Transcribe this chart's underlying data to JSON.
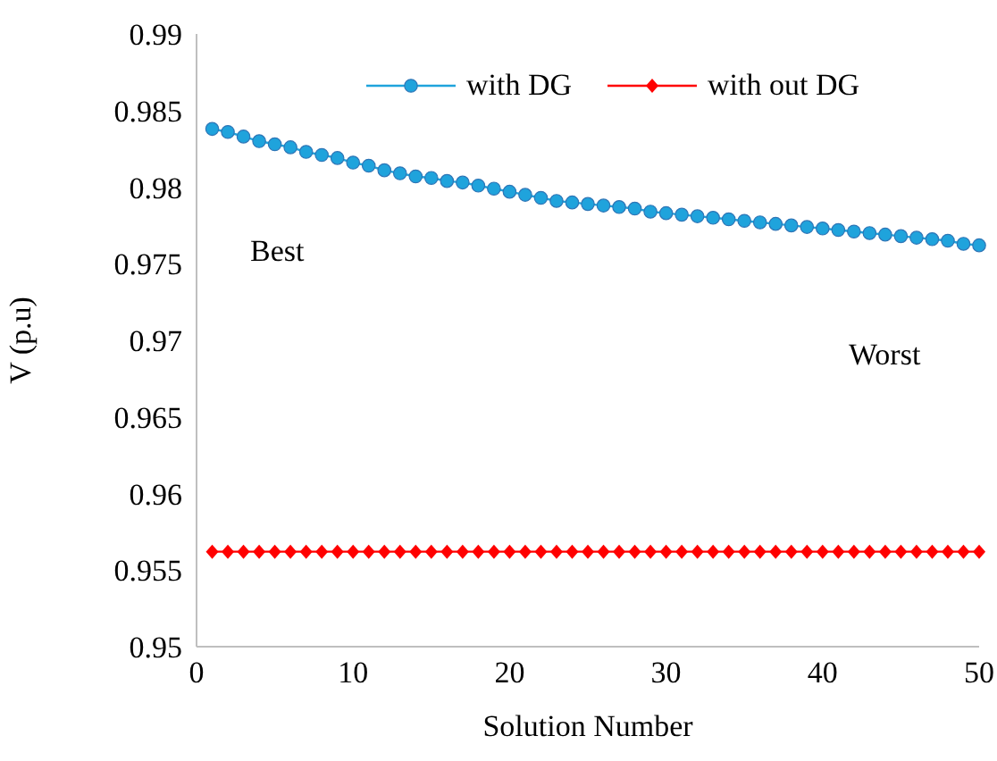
{
  "chart_data": {
    "type": "line",
    "xlabel": "Solution Number",
    "ylabel": "V (p.u)",
    "x": [
      1,
      2,
      3,
      4,
      5,
      6,
      7,
      8,
      9,
      10,
      11,
      12,
      13,
      14,
      15,
      16,
      17,
      18,
      19,
      20,
      21,
      22,
      23,
      24,
      25,
      26,
      27,
      28,
      29,
      30,
      31,
      32,
      33,
      34,
      35,
      36,
      37,
      38,
      39,
      40,
      41,
      42,
      43,
      44,
      45,
      46,
      47,
      48,
      49,
      50
    ],
    "series": [
      {
        "name": "with DG",
        "color": "#1fa3dc",
        "marker": "circle",
        "values": [
          0.9838,
          0.9836,
          0.9833,
          0.983,
          0.9828,
          0.9826,
          0.9823,
          0.9821,
          0.9819,
          0.9816,
          0.9814,
          0.9811,
          0.9809,
          0.9807,
          0.9806,
          0.9804,
          0.9803,
          0.9801,
          0.9799,
          0.9797,
          0.9795,
          0.9793,
          0.9791,
          0.979,
          0.9789,
          0.9788,
          0.9787,
          0.9786,
          0.9784,
          0.9783,
          0.9782,
          0.9781,
          0.978,
          0.9779,
          0.9778,
          0.9777,
          0.9776,
          0.9775,
          0.9774,
          0.9773,
          0.9772,
          0.9771,
          0.977,
          0.9769,
          0.9768,
          0.9767,
          0.9766,
          0.9765,
          0.9763,
          0.9762
        ]
      },
      {
        "name": "with out DG",
        "color": "#ff0000",
        "marker": "diamond",
        "values": [
          0.9562,
          0.9562,
          0.9562,
          0.9562,
          0.9562,
          0.9562,
          0.9562,
          0.9562,
          0.9562,
          0.9562,
          0.9562,
          0.9562,
          0.9562,
          0.9562,
          0.9562,
          0.9562,
          0.9562,
          0.9562,
          0.9562,
          0.9562,
          0.9562,
          0.9562,
          0.9562,
          0.9562,
          0.9562,
          0.9562,
          0.9562,
          0.9562,
          0.9562,
          0.9562,
          0.9562,
          0.9562,
          0.9562,
          0.9562,
          0.9562,
          0.9562,
          0.9562,
          0.9562,
          0.9562,
          0.9562,
          0.9562,
          0.9562,
          0.9562,
          0.9562,
          0.9562,
          0.9562,
          0.9562,
          0.9562,
          0.9562,
          0.9562
        ]
      }
    ],
    "xlim": [
      0,
      50
    ],
    "xticks": [
      0,
      10,
      20,
      30,
      40,
      50
    ],
    "ylim": [
      0.95,
      0.99
    ],
    "yticks": [
      0.95,
      0.955,
      0.96,
      0.965,
      0.97,
      0.975,
      0.98,
      0.985,
      0.99
    ],
    "legend": "top",
    "annotations": [
      "Best",
      "Worst"
    ]
  }
}
